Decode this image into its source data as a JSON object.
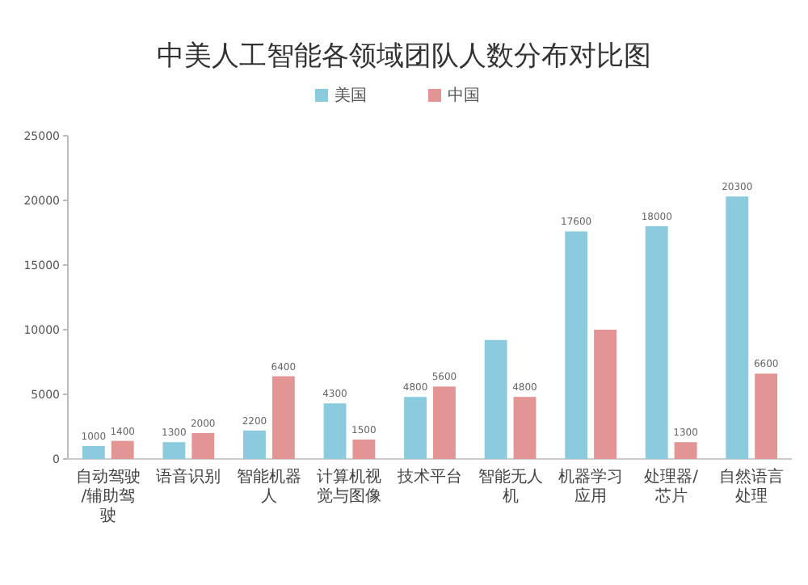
{
  "chart_data": {
    "type": "bar",
    "title": "中美人工智能各领域团队人数分布对比图",
    "categories": [
      "自动驾驶/辅助驾驶",
      "语音识别",
      "智能机器人",
      "计算机视觉与图像",
      "技术平台",
      "智能无人机",
      "机器学习应用",
      "处理器/芯片",
      "自然语言处理"
    ],
    "series": [
      {
        "name": "美国",
        "color": "#8ccbde",
        "values": [
          1000,
          1300,
          2200,
          4300,
          4800,
          9200,
          17600,
          18000,
          20300
        ],
        "value_labels": [
          "1000",
          "1300",
          "2200",
          "4300",
          "4800",
          null,
          "17600",
          "18000",
          "20300"
        ]
      },
      {
        "name": "中国",
        "color": "#e39494",
        "values": [
          1400,
          2000,
          6400,
          1500,
          5600,
          4800,
          10000,
          1300,
          6600
        ],
        "value_labels": [
          "1400",
          "2000",
          "6400",
          "1500",
          "5600",
          "4800",
          null,
          "1300",
          "6600"
        ]
      }
    ],
    "ylim": [
      0,
      25000
    ],
    "yticks": [
      0,
      5000,
      10000,
      15000,
      20000,
      25000
    ],
    "grid": false,
    "legend": "top"
  }
}
